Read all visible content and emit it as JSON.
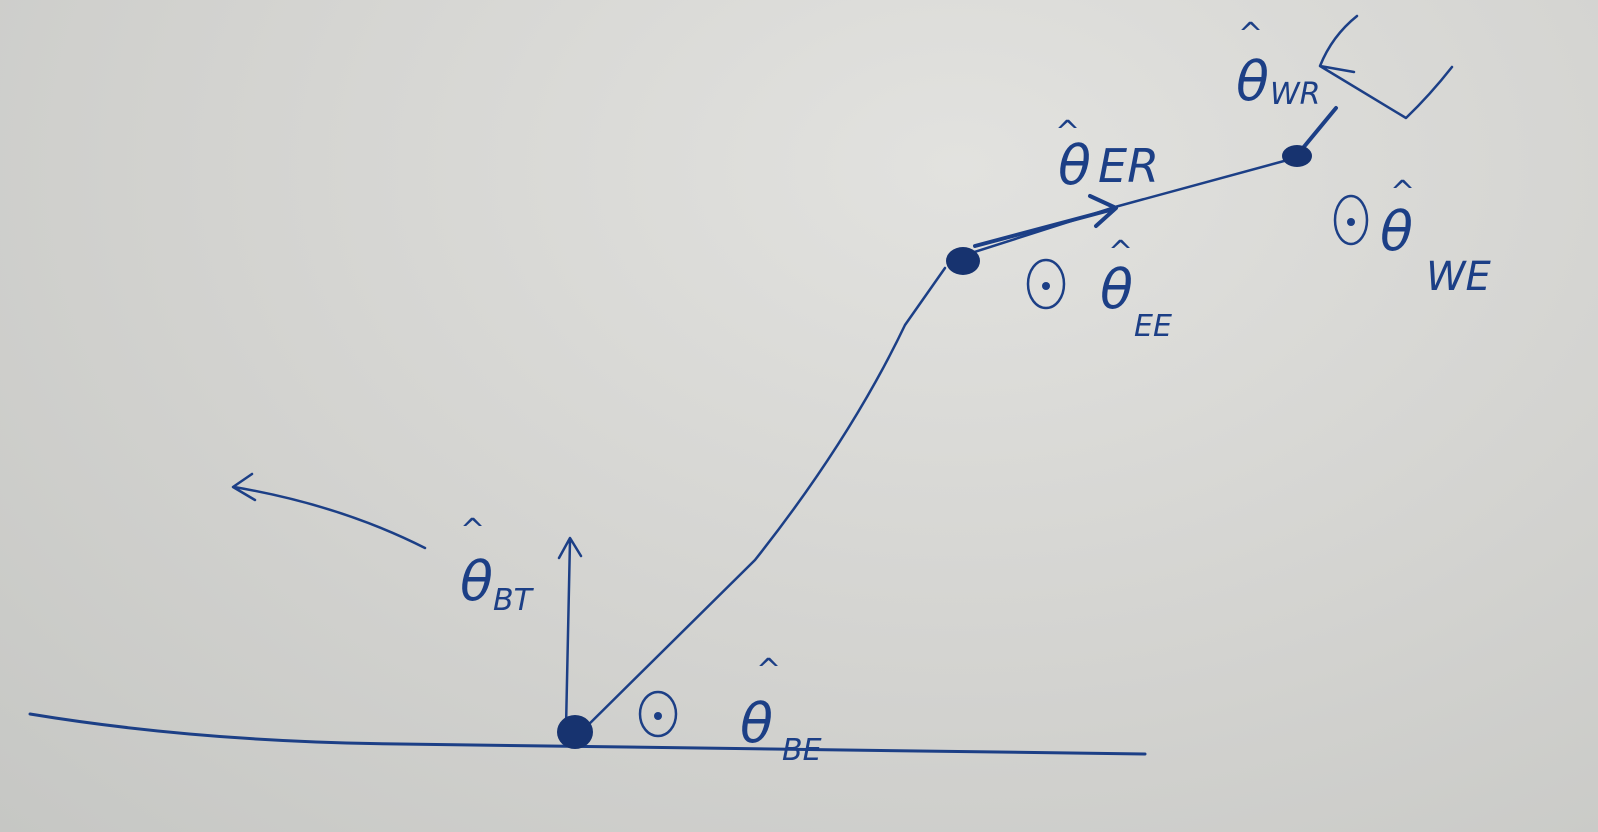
{
  "colors": {
    "ink": "#1c3f86",
    "paper": "#d4d4d2"
  },
  "labels": {
    "theta_bt": {
      "symbol": "θ",
      "hat": "^",
      "sub": "BT"
    },
    "theta_be": {
      "symbol": "θ",
      "hat": "^",
      "sub": "BE"
    },
    "theta_er": {
      "symbol": "θ",
      "hat": "^",
      "sub": "ER"
    },
    "theta_ee": {
      "symbol": "θ",
      "hat": "^",
      "sub": "EE"
    },
    "theta_we": {
      "symbol": "θ",
      "hat": "^",
      "sub": "WE"
    },
    "theta_wr": {
      "symbol": "θ",
      "hat": "^",
      "sub": "WR"
    }
  }
}
